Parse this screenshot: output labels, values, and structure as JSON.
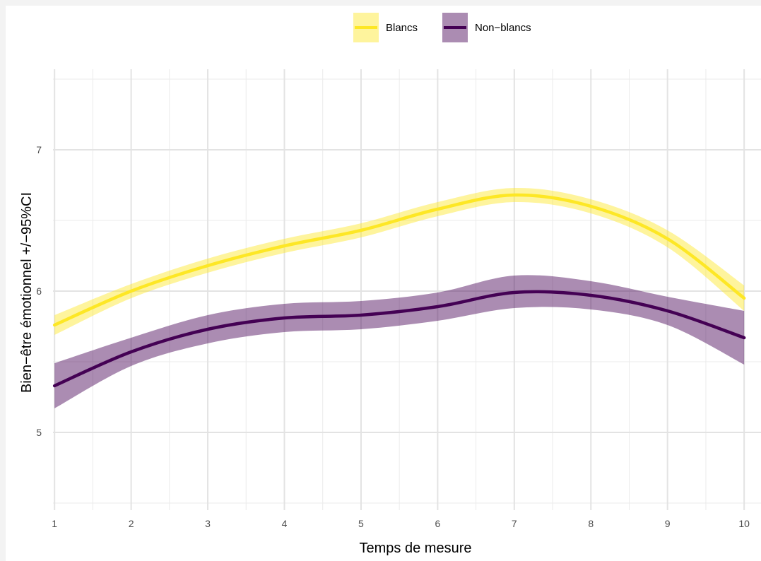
{
  "chart_data": {
    "type": "line",
    "xlabel": "Temps de mesure",
    "ylabel": "Bien−être émotionnel +/−95%CI",
    "x": [
      1,
      2,
      3,
      4,
      5,
      6,
      7,
      8,
      9,
      10
    ],
    "xlim": [
      0.98,
      10.22
    ],
    "ylim": [
      4.45,
      7.57
    ],
    "x_ticks": [
      "1",
      "2",
      "3",
      "4",
      "5",
      "6",
      "7",
      "8",
      "9",
      "10"
    ],
    "y_ticks": [
      "5",
      "6",
      "7"
    ],
    "y_tick_values": [
      5,
      6,
      7
    ],
    "y_minor_gridlines": [
      4.5,
      5.5,
      6.5,
      7.5
    ],
    "x_minor_gridlines": [
      1.5,
      2.5,
      3.5,
      4.5,
      5.5,
      6.5,
      7.5,
      8.5,
      9.5
    ],
    "grid": true,
    "legend_position": "top",
    "series": [
      {
        "name": "Blancs",
        "color": "#FDE725",
        "values": [
          5.76,
          6.0,
          6.18,
          6.32,
          6.43,
          6.58,
          6.68,
          6.6,
          6.37,
          5.95
        ],
        "ci_lower": [
          5.69,
          5.95,
          6.13,
          6.27,
          6.38,
          6.53,
          6.63,
          6.55,
          6.31,
          5.86
        ],
        "ci_upper": [
          5.83,
          6.05,
          6.23,
          6.37,
          6.48,
          6.63,
          6.73,
          6.65,
          6.43,
          6.04
        ]
      },
      {
        "name": "Non−blancs",
        "color": "#440154",
        "values": [
          5.33,
          5.57,
          5.73,
          5.81,
          5.83,
          5.89,
          5.99,
          5.97,
          5.86,
          5.67
        ],
        "ci_lower": [
          5.17,
          5.47,
          5.63,
          5.71,
          5.73,
          5.79,
          5.88,
          5.87,
          5.76,
          5.48
        ],
        "ci_upper": [
          5.49,
          5.67,
          5.83,
          5.91,
          5.93,
          5.99,
          6.11,
          6.07,
          5.96,
          5.86
        ]
      }
    ]
  }
}
